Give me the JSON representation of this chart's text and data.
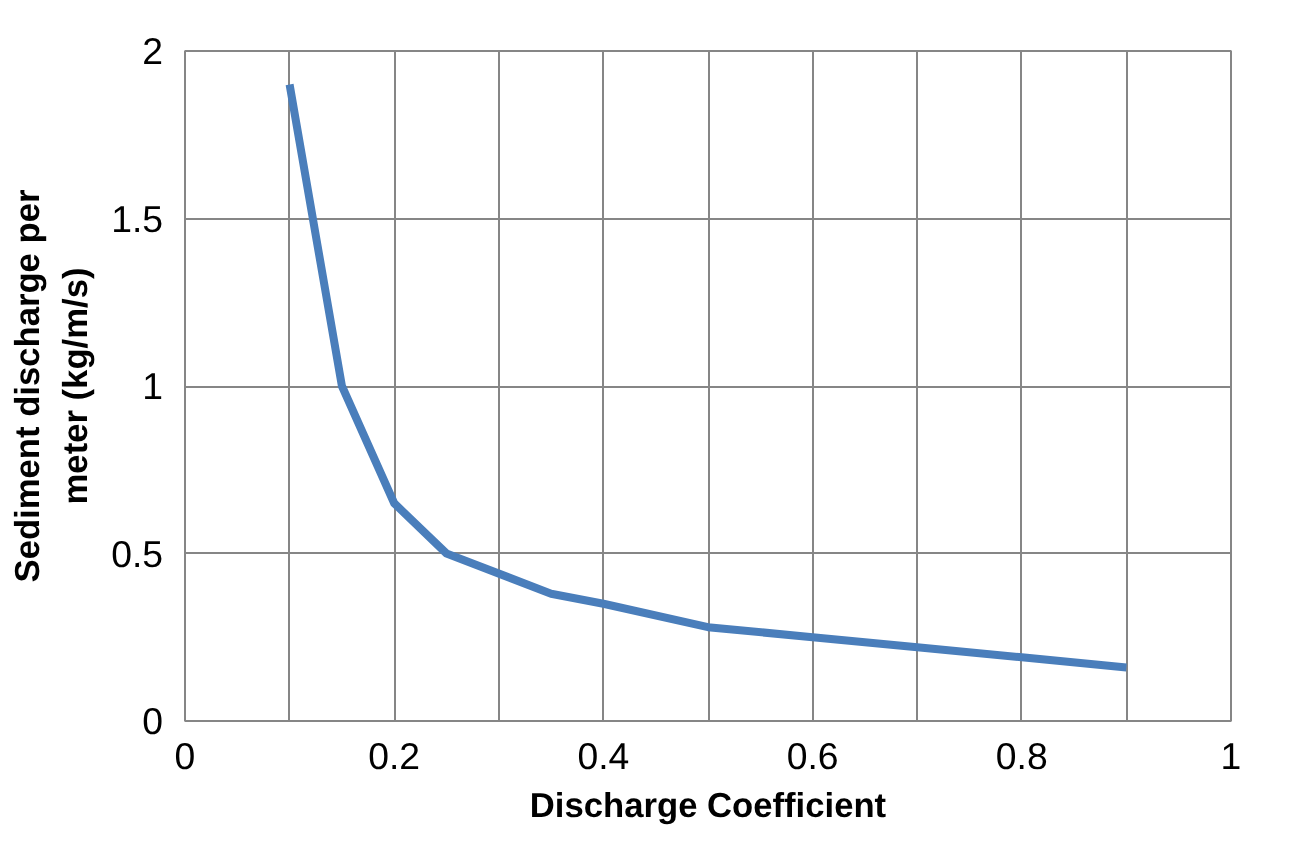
{
  "chart_data": {
    "type": "line",
    "xlabel": "Discharge Coefficient",
    "ylabel": "Sediment discharge per\nmeter (kg/m/s)",
    "x": [
      0.1,
      0.15,
      0.2,
      0.25,
      0.35,
      0.4,
      0.5,
      0.6,
      0.7,
      0.8,
      0.9
    ],
    "series": [
      {
        "color": "#4a7ebb",
        "values": [
          1.9,
          1.0,
          0.65,
          0.5,
          0.38,
          0.35,
          0.28,
          0.25,
          0.22,
          0.19,
          0.16
        ]
      }
    ],
    "xlim": [
      0,
      1
    ],
    "ylim": [
      0,
      2
    ],
    "xticks": [
      0,
      {
        "value": 0.1,
        "label": null
      },
      0.2,
      {
        "value": 0.3,
        "label": null
      },
      0.4,
      {
        "value": 0.5,
        "label": null
      },
      0.6,
      {
        "value": 0.7,
        "label": null
      },
      0.8,
      {
        "value": 0.9,
        "label": null
      },
      1
    ],
    "yticks": [
      0,
      0.5,
      1,
      1.5,
      2
    ],
    "grid": true,
    "marker": "none",
    "line_style": "solid"
  }
}
